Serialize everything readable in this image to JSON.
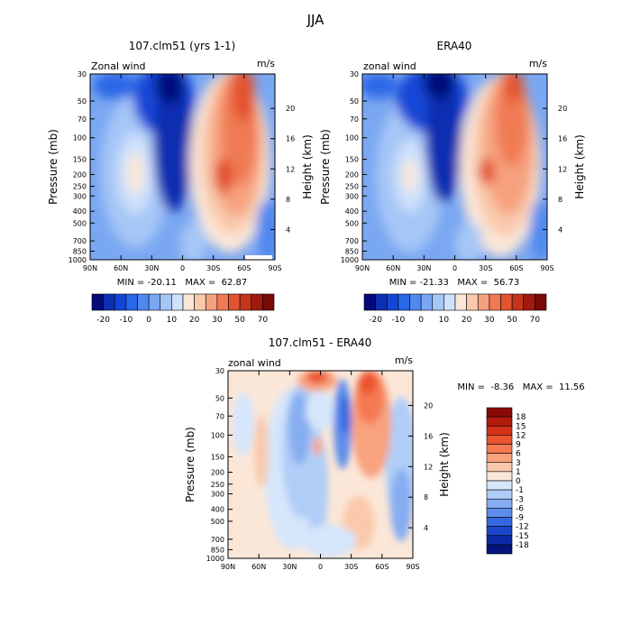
{
  "figure": {
    "title": "JJA"
  },
  "colorbar_top": {
    "labels": [
      "-20",
      "-10",
      "0",
      "10",
      "20",
      "30",
      "50",
      "70"
    ],
    "colors": [
      "#050a7a",
      "#0a2fb0",
      "#1346d6",
      "#2a67e6",
      "#4f88ee",
      "#7aa7f2",
      "#a6c6f7",
      "#cfe2fb",
      "#fbe7d8",
      "#f9c9ac",
      "#f6a17e",
      "#f07a53",
      "#e2532f",
      "#c7341c",
      "#a11a0f",
      "#7a0a05"
    ]
  },
  "colorbar_diff": {
    "labels": [
      "18",
      "15",
      "12",
      "9",
      "6",
      "3",
      "1",
      "0",
      "-1",
      "-3",
      "-6",
      "-9",
      "-12",
      "-15",
      "-18"
    ],
    "colors": [
      "#8b0a05",
      "#b11a0c",
      "#d2321a",
      "#ea542f",
      "#f57a53",
      "#f8a27e",
      "#fac9ac",
      "#fbe7d8",
      "#d6e6fb",
      "#b0cdf7",
      "#86adf1",
      "#5c8deb",
      "#3568e0",
      "#1c47cc",
      "#0d2aa6",
      "#05147a"
    ]
  },
  "chart_data": [
    {
      "type": "heatmap",
      "title": "107.clm51 (yrs 1-1)",
      "variable": "Zonal wind",
      "units": "m/s",
      "ylabel": "Pressure (mb)",
      "ylabel_right": "Height (km)",
      "x_ticks": [
        "90N",
        "60N",
        "30N",
        "0",
        "30S",
        "60S",
        "90S"
      ],
      "y_ticks": [
        "30",
        "50",
        "70",
        "100",
        "150",
        "200",
        "250",
        "300",
        "400",
        "500",
        "700",
        "850",
        "1000"
      ],
      "y_ticks_right": [
        "20",
        "16",
        "12",
        "8",
        "4"
      ],
      "min": -20.11,
      "max": 62.87,
      "stats_text": "MIN = -20.11   MAX =  62.87"
    },
    {
      "type": "heatmap",
      "title": "ERA40",
      "variable": "zonal wind",
      "units": "m/s",
      "ylabel": "Pressure (mb)",
      "ylabel_right": "Height (km)",
      "x_ticks": [
        "90N",
        "60N",
        "30N",
        "0",
        "30S",
        "60S",
        "90S"
      ],
      "y_ticks": [
        "30",
        "50",
        "70",
        "100",
        "150",
        "200",
        "250",
        "300",
        "400",
        "500",
        "700",
        "850",
        "1000"
      ],
      "y_ticks_right": [
        "20",
        "16",
        "12",
        "8",
        "4"
      ],
      "min": -21.33,
      "max": 56.73,
      "stats_text": "MIN = -21.33   MAX =  56.73"
    },
    {
      "type": "heatmap",
      "title": "107.clm51 - ERA40",
      "variable": "zonal wind",
      "units": "m/s",
      "ylabel": "Pressure (mb)",
      "ylabel_right": "Height (km)",
      "x_ticks": [
        "90N",
        "60N",
        "30N",
        "0",
        "30S",
        "60S",
        "90S"
      ],
      "y_ticks": [
        "30",
        "50",
        "70",
        "100",
        "150",
        "200",
        "250",
        "300",
        "400",
        "500",
        "700",
        "850",
        "1000"
      ],
      "y_ticks_right": [
        "20",
        "16",
        "12",
        "8",
        "4"
      ],
      "min": -8.36,
      "max": 11.56,
      "stats_text": "MIN =  -8.36   MAX =  11.56"
    }
  ]
}
